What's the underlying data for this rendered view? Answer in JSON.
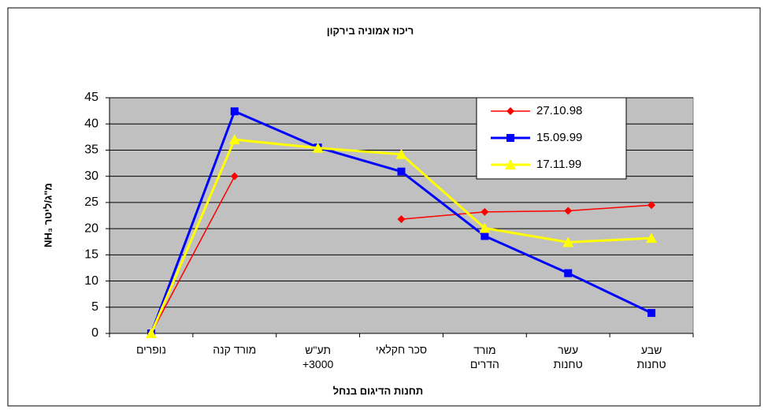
{
  "chart_data": {
    "type": "line",
    "title": "ריכוז אמוניה בירקון",
    "x_label": "תחנות הדיגום בנחל",
    "y_label": "NH₃ מ\"ג/ליטר",
    "categories": [
      "נופרים",
      "מורד קנה",
      "תע\"ש\n+3000",
      "סכר חקלאי",
      "מורד\nהדרים",
      "עשר\nטחנות",
      "שבע\nטחנות"
    ],
    "series": [
      {
        "name": "27.10.98",
        "color": "#ff0000",
        "marker": "diamond",
        "values": [
          0,
          30,
          null,
          21.8,
          23.2,
          23.4,
          24.5
        ]
      },
      {
        "name": "15.09.99",
        "color": "#0000ff",
        "marker": "square",
        "values": [
          0,
          42.4,
          35.5,
          30.9,
          18.6,
          11.5,
          3.9
        ]
      },
      {
        "name": "17.11.99",
        "color": "#ffff00",
        "marker": "triangle",
        "values": [
          0,
          37,
          35.4,
          34.2,
          20.1,
          17.4,
          18.2
        ]
      }
    ],
    "ylim": [
      0,
      45
    ],
    "yticks": [
      0,
      5,
      10,
      15,
      20,
      25,
      30,
      35,
      40,
      45
    ],
    "grid": true,
    "legend": "upper right"
  }
}
